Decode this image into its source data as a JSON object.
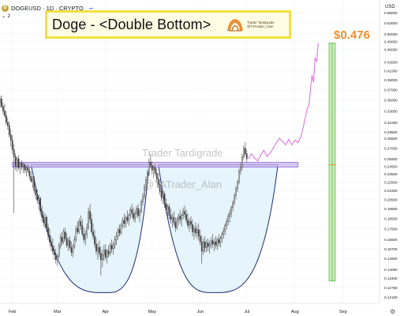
{
  "header": {
    "symbol": "DOGEUSD · 1D · CRYPTO",
    "symbol_logo": "Ð",
    "indicator_count": "2",
    "axis_currency": "USD"
  },
  "banner": {
    "title": "Doge - <Double Bottom>",
    "author_line1": "Trader Tardigrade",
    "author_line2": "@TATrader_Alan"
  },
  "watermark": {
    "name": "Trader Tardigrade",
    "handle": "@TATrader_Alan"
  },
  "target": {
    "label": "$0.476",
    "value": 0.476
  },
  "colors": {
    "up": "#3c3c3c",
    "down": "#3c3c3c",
    "neckline_fill": "#c8b6f0",
    "neckline_stroke": "#8f6ad8",
    "bowl_fill": "#e6f4fb",
    "bowl_stroke": "#1c2c73",
    "projection": "#e07fe0",
    "target_fill": "#c9ecb4",
    "target_stroke": "#66bb5a",
    "target_label": "#f28d2c"
  },
  "chart_data": {
    "type": "candlestick",
    "title": "Doge - <Double Bottom>",
    "x_tick_labels": [
      "Feb",
      "Mar",
      "Apr",
      "May",
      "Jun",
      "Jul",
      "Aug",
      "Sep"
    ],
    "x_tick_days": [
      0,
      29,
      60,
      90,
      121,
      151,
      182,
      213
    ],
    "y_scale": "log",
    "y_tick_labels": [
      "0.12100",
      "0.12750",
      "0.13400",
      "0.14050",
      "0.14900",
      "0.15700",
      "0.16500",
      "0.17500",
      "0.18500",
      "0.19500",
      "0.20500",
      "0.21500",
      "0.22500",
      "0.23500",
      "0.24500",
      "0.25500",
      "0.27000",
      "0.28500",
      "0.29500",
      "0.31000",
      "0.33000",
      "0.35000",
      "0.37000",
      "0.39000",
      "0.41000",
      "0.43000",
      "0.46000",
      "0.48000",
      "0.50000",
      "0.53000",
      "0.56000"
    ],
    "ylim": [
      0.117,
      0.6
    ],
    "xlim_days": [
      -8,
      236
    ],
    "neckline": {
      "value": 0.247,
      "start_day": 0,
      "end_day": 184
    },
    "bowls": [
      {
        "start_day": 12,
        "bottom_day": 60,
        "end_day": 88,
        "low": 0.124
      },
      {
        "start_day": 94,
        "bottom_day": 130,
        "end_day": 171,
        "low": 0.124
      }
    ],
    "target_box": {
      "day": 206,
      "low": 0.132,
      "high": 0.476,
      "mid": 0.247
    },
    "candles": [
      [
        -8,
        0.345,
        0.357,
        0.336,
        0.352
      ],
      [
        -7,
        0.352,
        0.359,
        0.335,
        0.338
      ],
      [
        -6,
        0.338,
        0.345,
        0.324,
        0.33
      ],
      [
        -5,
        0.33,
        0.342,
        0.318,
        0.322
      ],
      [
        -4,
        0.322,
        0.33,
        0.305,
        0.31
      ],
      [
        -3,
        0.31,
        0.318,
        0.298,
        0.305
      ],
      [
        -2,
        0.305,
        0.312,
        0.286,
        0.29
      ],
      [
        -1,
        0.29,
        0.299,
        0.272,
        0.282
      ],
      [
        0,
        0.282,
        0.29,
        0.262,
        0.268
      ],
      [
        1,
        0.268,
        0.276,
        0.19,
        0.258
      ],
      [
        2,
        0.258,
        0.263,
        0.24,
        0.245
      ],
      [
        3,
        0.245,
        0.258,
        0.238,
        0.255
      ],
      [
        4,
        0.255,
        0.26,
        0.24,
        0.243
      ],
      [
        5,
        0.243,
        0.25,
        0.235,
        0.249
      ],
      [
        6,
        0.249,
        0.253,
        0.24,
        0.245
      ],
      [
        7,
        0.245,
        0.25,
        0.236,
        0.247
      ],
      [
        8,
        0.247,
        0.249,
        0.236,
        0.24
      ],
      [
        9,
        0.24,
        0.246,
        0.232,
        0.243
      ],
      [
        10,
        0.243,
        0.248,
        0.236,
        0.239
      ],
      [
        11,
        0.239,
        0.244,
        0.228,
        0.232
      ],
      [
        12,
        0.232,
        0.238,
        0.224,
        0.226
      ],
      [
        13,
        0.226,
        0.232,
        0.218,
        0.229
      ],
      [
        14,
        0.229,
        0.232,
        0.212,
        0.215
      ],
      [
        15,
        0.215,
        0.221,
        0.205,
        0.21
      ],
      [
        16,
        0.21,
        0.216,
        0.2,
        0.204
      ],
      [
        17,
        0.204,
        0.21,
        0.194,
        0.206
      ],
      [
        18,
        0.206,
        0.208,
        0.188,
        0.192
      ],
      [
        19,
        0.192,
        0.198,
        0.182,
        0.186
      ],
      [
        20,
        0.186,
        0.192,
        0.177,
        0.181
      ],
      [
        21,
        0.181,
        0.19,
        0.175,
        0.186
      ],
      [
        22,
        0.186,
        0.188,
        0.172,
        0.176
      ],
      [
        23,
        0.176,
        0.18,
        0.165,
        0.169
      ],
      [
        24,
        0.169,
        0.175,
        0.16,
        0.163
      ],
      [
        25,
        0.163,
        0.168,
        0.155,
        0.159
      ],
      [
        26,
        0.159,
        0.166,
        0.152,
        0.155
      ],
      [
        27,
        0.155,
        0.16,
        0.148,
        0.152
      ],
      [
        28,
        0.152,
        0.157,
        0.145,
        0.148
      ],
      [
        29,
        0.148,
        0.153,
        0.143,
        0.151
      ],
      [
        30,
        0.151,
        0.162,
        0.149,
        0.16
      ],
      [
        31,
        0.16,
        0.17,
        0.157,
        0.167
      ],
      [
        32,
        0.167,
        0.172,
        0.16,
        0.163
      ],
      [
        33,
        0.163,
        0.175,
        0.161,
        0.172
      ],
      [
        34,
        0.172,
        0.176,
        0.164,
        0.166
      ],
      [
        35,
        0.166,
        0.171,
        0.158,
        0.16
      ],
      [
        36,
        0.16,
        0.167,
        0.155,
        0.164
      ],
      [
        37,
        0.164,
        0.168,
        0.156,
        0.158
      ],
      [
        38,
        0.158,
        0.163,
        0.151,
        0.154
      ],
      [
        39,
        0.154,
        0.161,
        0.15,
        0.159
      ],
      [
        40,
        0.159,
        0.168,
        0.157,
        0.165
      ],
      [
        41,
        0.165,
        0.178,
        0.163,
        0.175
      ],
      [
        42,
        0.175,
        0.182,
        0.17,
        0.172
      ],
      [
        43,
        0.172,
        0.185,
        0.17,
        0.182
      ],
      [
        44,
        0.182,
        0.188,
        0.174,
        0.178
      ],
      [
        45,
        0.178,
        0.184,
        0.168,
        0.17
      ],
      [
        46,
        0.17,
        0.176,
        0.162,
        0.165
      ],
      [
        47,
        0.165,
        0.173,
        0.16,
        0.17
      ],
      [
        48,
        0.17,
        0.18,
        0.166,
        0.176
      ],
      [
        49,
        0.176,
        0.196,
        0.174,
        0.192
      ],
      [
        50,
        0.192,
        0.2,
        0.18,
        0.184
      ],
      [
        51,
        0.184,
        0.19,
        0.17,
        0.172
      ],
      [
        52,
        0.172,
        0.18,
        0.165,
        0.168
      ],
      [
        53,
        0.168,
        0.174,
        0.158,
        0.161
      ],
      [
        54,
        0.161,
        0.167,
        0.152,
        0.155
      ],
      [
        55,
        0.155,
        0.162,
        0.148,
        0.158
      ],
      [
        56,
        0.158,
        0.164,
        0.15,
        0.153
      ],
      [
        57,
        0.153,
        0.159,
        0.136,
        0.148
      ],
      [
        58,
        0.148,
        0.156,
        0.142,
        0.152
      ],
      [
        59,
        0.152,
        0.16,
        0.147,
        0.156
      ],
      [
        60,
        0.156,
        0.161,
        0.148,
        0.15
      ],
      [
        61,
        0.15,
        0.157,
        0.145,
        0.155
      ],
      [
        62,
        0.155,
        0.16,
        0.15,
        0.153
      ],
      [
        63,
        0.153,
        0.162,
        0.151,
        0.16
      ],
      [
        64,
        0.16,
        0.165,
        0.154,
        0.157
      ],
      [
        65,
        0.157,
        0.163,
        0.152,
        0.161
      ],
      [
        66,
        0.161,
        0.168,
        0.157,
        0.165
      ],
      [
        67,
        0.165,
        0.172,
        0.16,
        0.168
      ],
      [
        68,
        0.168,
        0.176,
        0.165,
        0.174
      ],
      [
        69,
        0.174,
        0.179,
        0.168,
        0.171
      ],
      [
        70,
        0.171,
        0.18,
        0.169,
        0.178
      ],
      [
        71,
        0.178,
        0.186,
        0.175,
        0.183
      ],
      [
        72,
        0.183,
        0.19,
        0.176,
        0.18
      ],
      [
        73,
        0.18,
        0.188,
        0.176,
        0.186
      ],
      [
        74,
        0.186,
        0.193,
        0.18,
        0.183
      ],
      [
        75,
        0.183,
        0.19,
        0.178,
        0.188
      ],
      [
        76,
        0.188,
        0.197,
        0.184,
        0.194
      ],
      [
        77,
        0.194,
        0.2,
        0.186,
        0.19
      ],
      [
        78,
        0.19,
        0.196,
        0.182,
        0.185
      ],
      [
        79,
        0.185,
        0.193,
        0.181,
        0.19
      ],
      [
        80,
        0.19,
        0.198,
        0.186,
        0.195
      ],
      [
        81,
        0.195,
        0.2,
        0.185,
        0.188
      ],
      [
        82,
        0.188,
        0.195,
        0.181,
        0.192
      ],
      [
        83,
        0.192,
        0.205,
        0.19,
        0.202
      ],
      [
        84,
        0.202,
        0.212,
        0.198,
        0.208
      ],
      [
        85,
        0.208,
        0.222,
        0.205,
        0.218
      ],
      [
        86,
        0.218,
        0.232,
        0.214,
        0.228
      ],
      [
        87,
        0.228,
        0.24,
        0.222,
        0.236
      ],
      [
        88,
        0.236,
        0.255,
        0.232,
        0.25
      ],
      [
        89,
        0.25,
        0.262,
        0.242,
        0.246
      ],
      [
        90,
        0.246,
        0.252,
        0.235,
        0.24
      ],
      [
        91,
        0.24,
        0.246,
        0.23,
        0.243
      ],
      [
        92,
        0.243,
        0.248,
        0.233,
        0.236
      ],
      [
        93,
        0.236,
        0.242,
        0.225,
        0.229
      ],
      [
        94,
        0.229,
        0.236,
        0.218,
        0.222
      ],
      [
        95,
        0.222,
        0.228,
        0.21,
        0.214
      ],
      [
        96,
        0.214,
        0.22,
        0.203,
        0.207
      ],
      [
        97,
        0.207,
        0.215,
        0.2,
        0.211
      ],
      [
        98,
        0.211,
        0.214,
        0.196,
        0.2
      ],
      [
        99,
        0.2,
        0.206,
        0.19,
        0.194
      ],
      [
        100,
        0.194,
        0.2,
        0.185,
        0.197
      ],
      [
        101,
        0.197,
        0.2,
        0.184,
        0.188
      ],
      [
        102,
        0.188,
        0.195,
        0.18,
        0.184
      ],
      [
        103,
        0.184,
        0.19,
        0.176,
        0.186
      ],
      [
        104,
        0.186,
        0.192,
        0.178,
        0.181
      ],
      [
        105,
        0.181,
        0.186,
        0.172,
        0.176
      ],
      [
        106,
        0.176,
        0.186,
        0.174,
        0.183
      ],
      [
        107,
        0.183,
        0.19,
        0.178,
        0.187
      ],
      [
        108,
        0.187,
        0.194,
        0.18,
        0.184
      ],
      [
        109,
        0.184,
        0.19,
        0.177,
        0.188
      ],
      [
        110,
        0.188,
        0.196,
        0.184,
        0.192
      ],
      [
        111,
        0.192,
        0.198,
        0.185,
        0.189
      ],
      [
        112,
        0.189,
        0.194,
        0.18,
        0.183
      ],
      [
        113,
        0.183,
        0.19,
        0.175,
        0.178
      ],
      [
        114,
        0.178,
        0.185,
        0.172,
        0.182
      ],
      [
        115,
        0.182,
        0.187,
        0.175,
        0.179
      ],
      [
        116,
        0.179,
        0.184,
        0.168,
        0.172
      ],
      [
        117,
        0.172,
        0.178,
        0.165,
        0.175
      ],
      [
        118,
        0.175,
        0.181,
        0.168,
        0.171
      ],
      [
        119,
        0.171,
        0.178,
        0.166,
        0.174
      ],
      [
        120,
        0.174,
        0.18,
        0.164,
        0.168
      ],
      [
        121,
        0.168,
        0.174,
        0.16,
        0.163
      ],
      [
        122,
        0.163,
        0.169,
        0.145,
        0.155
      ],
      [
        123,
        0.155,
        0.166,
        0.152,
        0.163
      ],
      [
        124,
        0.163,
        0.168,
        0.154,
        0.158
      ],
      [
        125,
        0.158,
        0.165,
        0.154,
        0.162
      ],
      [
        126,
        0.162,
        0.166,
        0.155,
        0.159
      ],
      [
        127,
        0.159,
        0.164,
        0.153,
        0.161
      ],
      [
        128,
        0.161,
        0.167,
        0.157,
        0.164
      ],
      [
        129,
        0.164,
        0.17,
        0.158,
        0.161
      ],
      [
        130,
        0.161,
        0.166,
        0.155,
        0.163
      ],
      [
        131,
        0.163,
        0.168,
        0.157,
        0.16
      ],
      [
        132,
        0.16,
        0.167,
        0.156,
        0.165
      ],
      [
        133,
        0.165,
        0.17,
        0.159,
        0.162
      ],
      [
        134,
        0.162,
        0.168,
        0.158,
        0.166
      ],
      [
        135,
        0.166,
        0.172,
        0.162,
        0.17
      ],
      [
        136,
        0.17,
        0.176,
        0.166,
        0.173
      ],
      [
        137,
        0.173,
        0.18,
        0.169,
        0.178
      ],
      [
        138,
        0.178,
        0.185,
        0.174,
        0.182
      ],
      [
        139,
        0.182,
        0.19,
        0.178,
        0.187
      ],
      [
        140,
        0.187,
        0.194,
        0.181,
        0.19
      ],
      [
        141,
        0.19,
        0.198,
        0.186,
        0.196
      ],
      [
        142,
        0.196,
        0.204,
        0.192,
        0.201
      ],
      [
        143,
        0.201,
        0.212,
        0.198,
        0.209
      ],
      [
        144,
        0.209,
        0.22,
        0.205,
        0.217
      ],
      [
        145,
        0.217,
        0.228,
        0.213,
        0.225
      ],
      [
        146,
        0.225,
        0.242,
        0.222,
        0.239
      ],
      [
        147,
        0.239,
        0.25,
        0.234,
        0.244
      ],
      [
        148,
        0.244,
        0.262,
        0.24,
        0.258
      ],
      [
        149,
        0.258,
        0.274,
        0.254,
        0.27
      ],
      [
        150,
        0.27,
        0.279,
        0.258,
        0.262
      ],
      [
        151,
        0.262,
        0.268,
        0.25,
        0.255
      ]
    ],
    "projection": [
      [
        152,
        0.255
      ],
      [
        154,
        0.262
      ],
      [
        156,
        0.256
      ],
      [
        158,
        0.252
      ],
      [
        160,
        0.26
      ],
      [
        162,
        0.267
      ],
      [
        164,
        0.258
      ],
      [
        166,
        0.263
      ],
      [
        168,
        0.27
      ],
      [
        170,
        0.278
      ],
      [
        172,
        0.285
      ],
      [
        174,
        0.28
      ],
      [
        176,
        0.275
      ],
      [
        178,
        0.283
      ],
      [
        180,
        0.275
      ],
      [
        182,
        0.282
      ],
      [
        184,
        0.278
      ],
      [
        186,
        0.288
      ],
      [
        188,
        0.31
      ],
      [
        190,
        0.335
      ],
      [
        191,
        0.34
      ],
      [
        192,
        0.37
      ],
      [
        193,
        0.4
      ],
      [
        194,
        0.385
      ],
      [
        195,
        0.44
      ],
      [
        196,
        0.43
      ],
      [
        197,
        0.476
      ]
    ]
  }
}
